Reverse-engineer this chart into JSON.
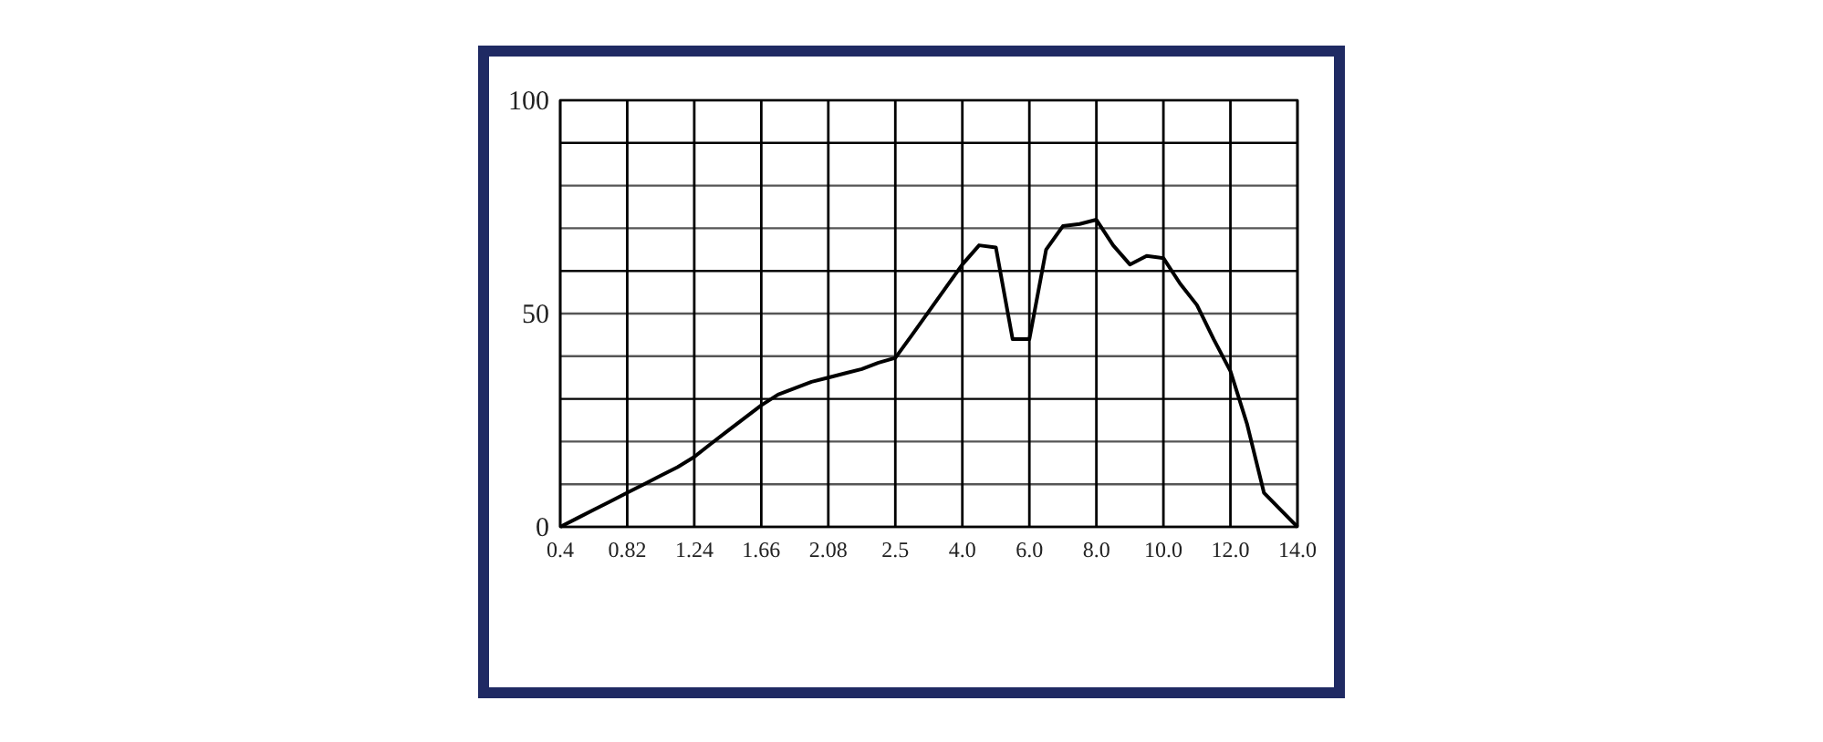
{
  "chart_data": {
    "type": "line",
    "categories": [
      "0.4",
      null,
      null,
      null,
      "0.82",
      null,
      null,
      null,
      "1.24",
      null,
      null,
      null,
      "1.66",
      null,
      null,
      null,
      "2.08",
      null,
      null,
      null,
      "2.5",
      null,
      null,
      null,
      "4.0",
      null,
      null,
      null,
      "6.0",
      null,
      null,
      null,
      "8.0",
      null,
      null,
      null,
      "10.0",
      null,
      null,
      null,
      "12.0",
      null,
      null,
      null,
      "14.0"
    ],
    "series": [
      {
        "color": "#000000",
        "values": [
          0,
          2,
          4,
          6,
          8,
          10,
          12,
          14,
          16.4,
          19.5,
          22.5,
          25.5,
          28.5,
          31,
          32.5,
          34,
          35,
          36,
          37,
          38.5,
          39.6,
          45,
          50.5,
          56,
          61.5,
          66,
          65.5,
          44,
          44,
          65,
          70.5,
          71,
          72,
          66,
          61.5,
          63.5,
          63,
          57,
          52,
          44,
          36.5,
          24,
          8,
          4,
          0
        ]
      }
    ],
    "ylim": [
      0,
      100
    ],
    "yticks": [
      0,
      {
        "value": 10,
        "label": null
      },
      {
        "value": 20,
        "label": null
      },
      {
        "value": 30,
        "label": null
      },
      {
        "value": 40,
        "label": null
      },
      50,
      {
        "value": 60,
        "label": null
      },
      {
        "value": 70,
        "label": null
      },
      {
        "value": 80,
        "label": null
      },
      {
        "value": 90,
        "label": null
      },
      100
    ],
    "grid": true,
    "marker": "none",
    "line_style": "solid"
  }
}
